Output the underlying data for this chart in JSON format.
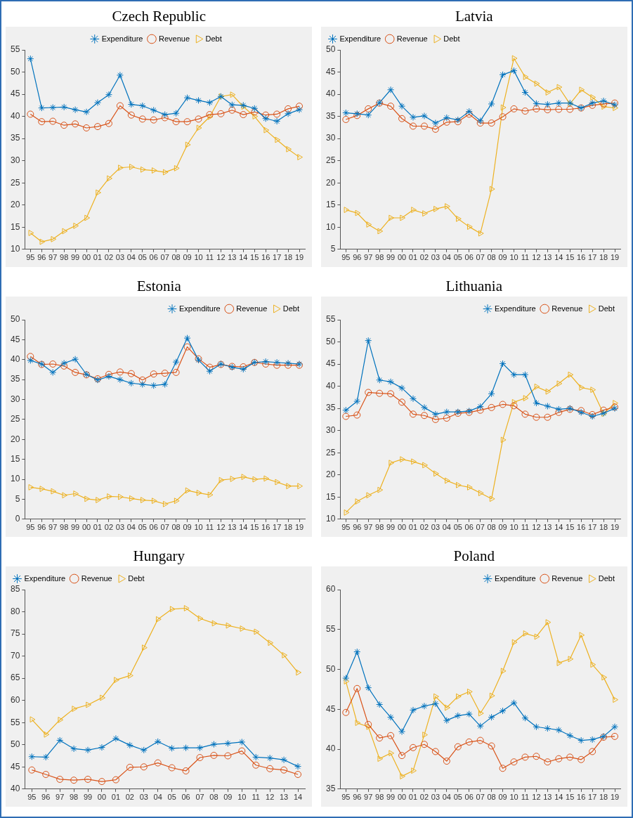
{
  "chart_data": [
    {
      "type": "line",
      "title": "Czech Republic",
      "legend": "top",
      "categories": [
        "95",
        "96",
        "97",
        "98",
        "99",
        "00",
        "01",
        "02",
        "03",
        "04",
        "05",
        "06",
        "07",
        "08",
        "09",
        "10",
        "11",
        "12",
        "13",
        "14",
        "15",
        "16",
        "17",
        "18",
        "19"
      ],
      "ylim": [
        10,
        55
      ],
      "yticks": [
        10,
        15,
        20,
        25,
        30,
        35,
        40,
        45,
        50,
        55
      ],
      "series": [
        {
          "name": "Expenditure",
          "color": "#0072bd",
          "marker": "cross",
          "values": [
            53,
            41.9,
            42,
            42.1,
            41.5,
            41,
            43.1,
            44.9,
            49.3,
            42.7,
            42.4,
            41.4,
            40.4,
            40.7,
            44.2,
            43.6,
            43.1,
            44.5,
            42.6,
            42.5,
            41.8,
            39.5,
            38.9,
            40.6,
            41.5
          ]
        },
        {
          "name": "Revenue",
          "color": "#d95319",
          "marker": "circle",
          "values": [
            40.5,
            38.8,
            38.9,
            38,
            38.3,
            37.4,
            37.7,
            38.4,
            42.4,
            40.3,
            39.4,
            39.2,
            39.7,
            38.8,
            38.8,
            39.4,
            40.4,
            40.6,
            41.4,
            40.4,
            41,
            40.3,
            40.5,
            41.7,
            42.3
          ]
        },
        {
          "name": "Debt",
          "color": "#edb120",
          "marker": "triangle",
          "values": [
            13.7,
            11.7,
            12.3,
            14.1,
            15.3,
            17.1,
            22.8,
            26,
            28.4,
            28.6,
            28,
            27.8,
            27.4,
            28.3,
            33.6,
            37.4,
            39.9,
            44.5,
            44.9,
            42.2,
            40,
            36.9,
            34.7,
            32.6,
            30.8
          ]
        }
      ]
    },
    {
      "type": "line",
      "title": "Latvia",
      "legend": "top left",
      "categories": [
        "95",
        "96",
        "97",
        "98",
        "99",
        "00",
        "01",
        "02",
        "03",
        "04",
        "05",
        "06",
        "07",
        "08",
        "09",
        "10",
        "11",
        "12",
        "13",
        "14",
        "15",
        "16",
        "17",
        "18",
        "19"
      ],
      "ylim": [
        5,
        50
      ],
      "yticks": [
        5,
        10,
        15,
        20,
        25,
        30,
        35,
        40,
        45,
        50
      ],
      "series": [
        {
          "name": "Expenditure",
          "color": "#0072bd",
          "marker": "cross",
          "values": [
            35.8,
            35.6,
            35.3,
            38.1,
            41,
            37.3,
            34.8,
            35.1,
            33.5,
            34.7,
            34.2,
            36.1,
            34,
            37.8,
            44.4,
            45.3,
            40.4,
            37.9,
            37.7,
            38,
            38,
            36.9,
            38,
            38.5,
            37.6
          ]
        },
        {
          "name": "Revenue",
          "color": "#d95319",
          "marker": "circle",
          "values": [
            34.3,
            35.2,
            36.7,
            38,
            37.3,
            34.5,
            32.8,
            32.8,
            32.1,
            33.7,
            33.8,
            35.5,
            33.5,
            33.5,
            34.9,
            36.7,
            36.2,
            36.7,
            36.5,
            36.6,
            36.6,
            36.9,
            37.5,
            37.8,
            38
          ]
        },
        {
          "name": "Debt",
          "color": "#edb120",
          "marker": "triangle",
          "values": [
            13.9,
            13.2,
            10.6,
            9.1,
            12.1,
            12.1,
            13.9,
            13.1,
            14.1,
            14.7,
            11.9,
            10.1,
            8.6,
            18.6,
            37,
            48.1,
            43.9,
            42.4,
            40.4,
            41.6,
            37.8,
            41,
            39.3,
            37.2,
            36.9
          ]
        }
      ]
    },
    {
      "type": "line",
      "title": "Estonia",
      "legend": "top right",
      "categories": [
        "95",
        "96",
        "97",
        "98",
        "99",
        "00",
        "01",
        "02",
        "03",
        "04",
        "05",
        "06",
        "07",
        "08",
        "09",
        "10",
        "11",
        "12",
        "13",
        "14",
        "15",
        "16",
        "17",
        "18",
        "19"
      ],
      "ylim": [
        0,
        50
      ],
      "yticks": [
        0,
        5,
        10,
        15,
        20,
        25,
        30,
        35,
        40,
        45,
        50
      ],
      "series": [
        {
          "name": "Expenditure",
          "color": "#0072bd",
          "marker": "cross",
          "values": [
            39.8,
            38.9,
            36.8,
            39.1,
            40.1,
            36.3,
            34.9,
            35.8,
            35,
            34.1,
            33.8,
            33.5,
            33.8,
            39.4,
            45.4,
            39.9,
            37.1,
            38.9,
            38.1,
            37.6,
            39.3,
            39.5,
            39.3,
            39.1,
            38.9
          ]
        },
        {
          "name": "Revenue",
          "color": "#d95319",
          "marker": "circle",
          "values": [
            40.8,
            38.8,
            38.9,
            38.4,
            36.8,
            36.2,
            35.2,
            36.3,
            36.9,
            36.5,
            34.9,
            36.4,
            36.6,
            36.8,
            43.2,
            40.2,
            38.1,
            38.8,
            38.3,
            38.2,
            39.3,
            38.9,
            38.6,
            38.6,
            38.6
          ]
        },
        {
          "name": "Debt",
          "color": "#edb120",
          "marker": "triangle",
          "values": [
            8,
            7.6,
            7,
            6,
            6.4,
            5.1,
            4.8,
            5.7,
            5.6,
            5.2,
            4.8,
            4.6,
            3.8,
            4.6,
            7.2,
            6.6,
            6.1,
            9.8,
            10.1,
            10.6,
            10,
            10.2,
            9.3,
            8.3,
            8.3
          ]
        }
      ]
    },
    {
      "type": "line",
      "title": "Lithuania",
      "legend": "top right",
      "categories": [
        "95",
        "96",
        "97",
        "98",
        "99",
        "00",
        "01",
        "02",
        "03",
        "04",
        "05",
        "06",
        "07",
        "08",
        "09",
        "10",
        "11",
        "12",
        "13",
        "14",
        "15",
        "16",
        "17",
        "18",
        "19"
      ],
      "ylim": [
        10,
        55
      ],
      "yticks": [
        10,
        15,
        20,
        25,
        30,
        35,
        40,
        45,
        50,
        55
      ],
      "series": [
        {
          "name": "Expenditure",
          "color": "#0072bd",
          "marker": "cross",
          "values": [
            34.6,
            36.6,
            50.3,
            41.4,
            41,
            39.6,
            37.2,
            35.2,
            33.7,
            34.2,
            34.2,
            34.4,
            35.4,
            38.3,
            45.1,
            42.6,
            42.6,
            36.2,
            35.5,
            34.8,
            35,
            34.1,
            33.2,
            33.9,
            35
          ]
        },
        {
          "name": "Revenue",
          "color": "#d95319",
          "marker": "circle",
          "values": [
            33.2,
            33.5,
            38.6,
            38.4,
            38.3,
            36.4,
            33.7,
            33.4,
            32.5,
            32.8,
            33.9,
            34.1,
            34.6,
            35.2,
            35.9,
            35.6,
            33.7,
            33,
            33,
            34.1,
            34.8,
            34.5,
            33.6,
            34.6,
            35.3
          ]
        },
        {
          "name": "Debt",
          "color": "#edb120",
          "marker": "triangle",
          "values": [
            11.5,
            14,
            15.4,
            16.6,
            22.7,
            23.5,
            23,
            22.2,
            20.3,
            18.7,
            17.7,
            17.2,
            15.9,
            14.6,
            27.9,
            36.4,
            37.3,
            39.9,
            38.8,
            40.6,
            42.6,
            39.7,
            39.2,
            33.8,
            36.2
          ]
        }
      ]
    },
    {
      "type": "line",
      "title": "Hungary",
      "legend": "top left",
      "categories": [
        "95",
        "96",
        "97",
        "98",
        "99",
        "00",
        "01",
        "02",
        "03",
        "04",
        "05",
        "06",
        "07",
        "08",
        "09",
        "10",
        "11",
        "12",
        "13",
        "14"
      ],
      "ylim": [
        40,
        85
      ],
      "yticks": [
        40,
        45,
        50,
        55,
        60,
        65,
        70,
        75,
        80,
        85
      ],
      "series": [
        {
          "name": "Expenditure",
          "color": "#0072bd",
          "marker": "cross",
          "values": [
            47.3,
            47.2,
            51,
            49.1,
            48.8,
            49.4,
            51.4,
            49.9,
            48.8,
            50.7,
            49.2,
            49.3,
            49.3,
            50.1,
            50.3,
            50.6,
            47.2,
            47,
            46.6,
            45.1
          ]
        },
        {
          "name": "Revenue",
          "color": "#d95319",
          "marker": "circle",
          "values": [
            44.3,
            43.3,
            42.2,
            42,
            42.2,
            41.7,
            42.1,
            44.9,
            45,
            45.9,
            44.8,
            44.1,
            47.1,
            47.6,
            47.5,
            48.6,
            45.4,
            44.6,
            44.3,
            43.3
          ]
        },
        {
          "name": "Debt",
          "color": "#edb120",
          "marker": "triangle",
          "values": [
            55.7,
            52.3,
            55.6,
            58.1,
            59,
            60.6,
            64.6,
            65.6,
            71.9,
            78.3,
            80.6,
            80.8,
            78.5,
            77.4,
            76.9,
            76.2,
            75.5,
            73,
            70.2,
            66.3
          ]
        }
      ]
    },
    {
      "type": "line",
      "title": "Poland",
      "legend": "top right",
      "categories": [
        "95",
        "96",
        "97",
        "98",
        "99",
        "00",
        "01",
        "02",
        "03",
        "04",
        "05",
        "06",
        "07",
        "08",
        "09",
        "10",
        "11",
        "12",
        "13",
        "14",
        "15",
        "16",
        "17",
        "18",
        "19"
      ],
      "ylim": [
        35,
        60
      ],
      "yticks": [
        35,
        40,
        45,
        50,
        55,
        60
      ],
      "series": [
        {
          "name": "Expenditure",
          "color": "#0072bd",
          "marker": "cross",
          "values": [
            48.9,
            52.2,
            47.7,
            45.6,
            44,
            42.2,
            44.9,
            45.4,
            45.7,
            43.6,
            44.2,
            44.4,
            42.9,
            44,
            44.8,
            45.8,
            43.9,
            42.8,
            42.6,
            42.4,
            41.7,
            41.1,
            41.2,
            41.6,
            42.8
          ]
        },
        {
          "name": "Revenue",
          "color": "#d95319",
          "marker": "circle",
          "values": [
            44.6,
            47.6,
            43.1,
            41.4,
            41.7,
            39.2,
            40.2,
            40.6,
            39.7,
            38.5,
            40.3,
            40.9,
            41.1,
            40.4,
            37.6,
            38.4,
            39,
            39.1,
            38.4,
            38.8,
            39,
            38.7,
            39.7,
            41.5,
            41.6
          ]
        },
        {
          "name": "Debt",
          "color": "#edb120",
          "marker": "triangle",
          "values": [
            48.5,
            43.3,
            42.8,
            38.8,
            39.5,
            36.6,
            37.3,
            41.8,
            46.6,
            45.2,
            46.6,
            47.2,
            44.5,
            46.7,
            49.8,
            53.4,
            54.5,
            54.1,
            55.9,
            50.8,
            51.3,
            54.3,
            50.6,
            49,
            46.2
          ]
        }
      ]
    }
  ]
}
